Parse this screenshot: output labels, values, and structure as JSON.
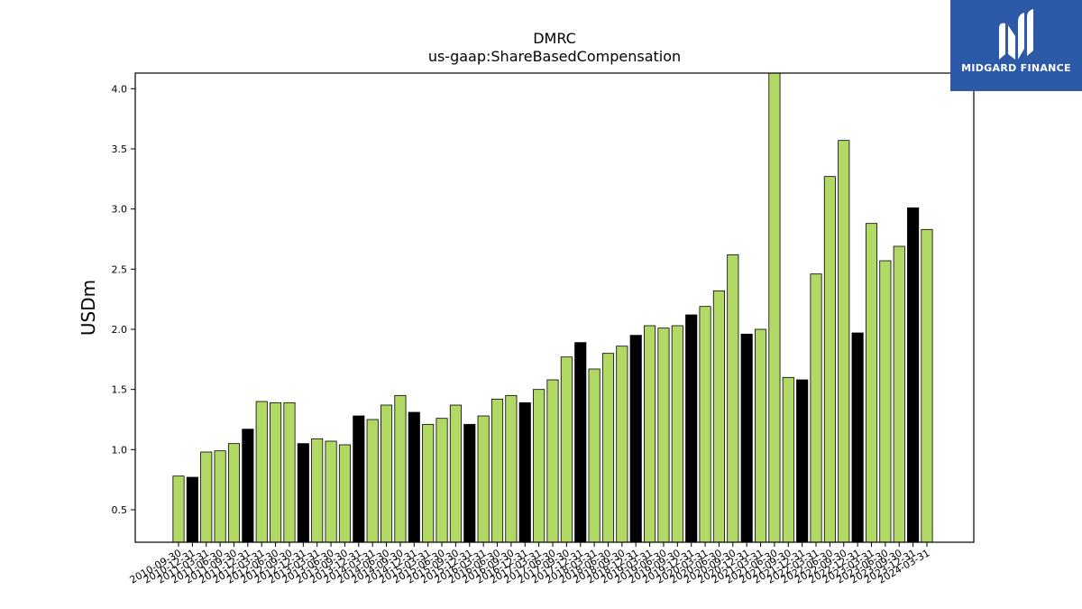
{
  "logo": {
    "text": "MIDGARD FINANCE",
    "icon": "midgard-m-logo-icon",
    "bg_color": "#2d5aa8"
  },
  "chart_data": {
    "type": "bar",
    "title": "DMRC",
    "subtitle": "us-gaap:ShareBasedCompensation",
    "xlabel": "",
    "ylabel": "USDm",
    "ylim": [
      0.23,
      4.13
    ],
    "yticks": [
      0.5,
      1.0,
      1.5,
      2.0,
      2.5,
      3.0,
      3.5,
      4.0
    ],
    "ytick_labels": [
      "0.5",
      "1.0",
      "1.5",
      "2.0",
      "2.5",
      "3.0",
      "3.5",
      "4.0"
    ],
    "grid": false,
    "colors": {
      "quarter": "#b2d965",
      "year_end": "#000000",
      "edge": "#000000"
    },
    "categories": [
      "2010-09-30",
      "2010-12-31",
      "2011-03-31",
      "2011-06-30",
      "2011-09-30",
      "2011-12-31",
      "2012-03-31",
      "2012-06-30",
      "2012-09-30",
      "2012-12-31",
      "2013-03-31",
      "2013-06-30",
      "2013-09-30",
      "2013-12-31",
      "2014-03-31",
      "2014-06-30",
      "2014-09-30",
      "2014-12-31",
      "2015-03-31",
      "2015-06-30",
      "2015-09-30",
      "2015-12-31",
      "2016-03-31",
      "2016-06-30",
      "2016-09-30",
      "2016-12-31",
      "2017-03-31",
      "2017-06-30",
      "2017-09-30",
      "2017-12-31",
      "2018-03-31",
      "2018-06-30",
      "2018-09-30",
      "2018-12-31",
      "2019-03-31",
      "2019-06-30",
      "2019-09-30",
      "2019-12-31",
      "2020-03-31",
      "2020-06-30",
      "2020-09-30",
      "2020-12-31",
      "2021-03-31",
      "2021-06-30",
      "2021-09-30",
      "2021-12-31",
      "2022-03-31",
      "2022-06-30",
      "2022-09-30",
      "2022-12-31",
      "2023-03-31",
      "2023-06-30",
      "2023-09-30",
      "2023-12-31",
      "2024-03-31"
    ],
    "values": [
      0.78,
      0.77,
      0.98,
      0.99,
      1.05,
      1.17,
      1.4,
      1.39,
      1.39,
      1.05,
      1.09,
      1.07,
      1.04,
      1.28,
      1.25,
      1.37,
      1.45,
      1.31,
      1.21,
      1.26,
      1.37,
      1.21,
      1.28,
      1.42,
      1.45,
      1.39,
      1.5,
      1.58,
      1.77,
      1.89,
      1.67,
      1.8,
      1.86,
      1.95,
      2.03,
      2.01,
      2.03,
      2.12,
      2.19,
      2.32,
      2.62,
      1.96,
      2.0,
      4.15,
      1.6,
      1.58,
      2.46,
      3.27,
      3.57,
      1.97,
      2.88,
      2.57,
      2.69,
      3.01,
      2.83
    ],
    "year_end": [
      false,
      true,
      false,
      false,
      false,
      true,
      false,
      false,
      false,
      true,
      false,
      false,
      false,
      true,
      false,
      false,
      false,
      true,
      false,
      false,
      false,
      true,
      false,
      false,
      false,
      true,
      false,
      false,
      false,
      true,
      false,
      false,
      false,
      true,
      false,
      false,
      false,
      true,
      false,
      false,
      false,
      true,
      false,
      false,
      false,
      true,
      false,
      false,
      false,
      true,
      false,
      false,
      false,
      true,
      false
    ]
  }
}
